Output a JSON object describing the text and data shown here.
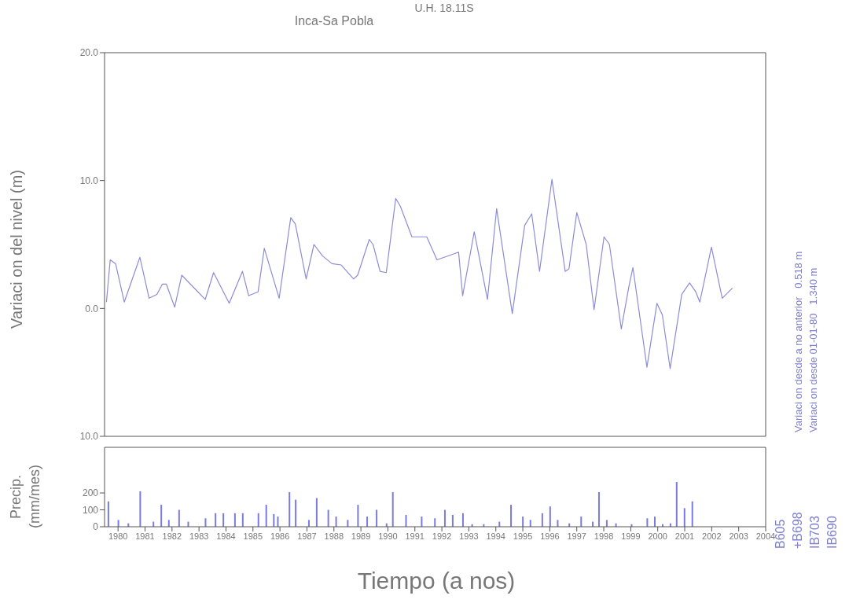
{
  "chart_data": [
    {
      "type": "line",
      "title": "U.H. 18.11S",
      "subtitle": "Inca-Sa Pobla",
      "ylabel": "Variaci on del nivel (m)",
      "xlim": [
        1979.5,
        2004
      ],
      "ylim": [
        -10,
        20
      ],
      "yticks": [
        {
          "value": -10,
          "label": "10.0"
        },
        {
          "value": 0,
          "label": "0.0"
        },
        {
          "value": 10,
          "label": "10.0"
        },
        {
          "value": 20,
          "label": "20.0"
        }
      ],
      "tick_labels": "y",
      "annotations": [
        "Variaci on desde a no anterior   0.518 m",
        "Variaci on desde 01-01-80   1.340 m"
      ],
      "series": [
        {
          "color": "#8c8cd8",
          "x": [
            1979.57,
            1979.71,
            1979.91,
            1980.23,
            1980.81,
            1981.15,
            1981.44,
            1981.64,
            1981.79,
            1982.1,
            1982.36,
            1983.23,
            1983.54,
            1984.12,
            1984.61,
            1984.84,
            1985.19,
            1985.42,
            1985.97,
            1986.4,
            1986.57,
            1986.97,
            1987.26,
            1987.58,
            1987.93,
            1988.27,
            1988.73,
            1988.88,
            1989.31,
            1989.45,
            1989.71,
            1989.94,
            1990.29,
            1990.46,
            1990.89,
            1991.1,
            1991.44,
            1991.82,
            1992.62,
            1992.77,
            1993.2,
            1993.69,
            1994.03,
            1994.61,
            1995.07,
            1995.33,
            1995.62,
            1996.08,
            1996.57,
            1996.71,
            1997.0,
            1997.35,
            1997.64,
            1998.01,
            1998.21,
            1998.65,
            1998.93,
            1999.08,
            1999.6,
            1999.97,
            2000.17,
            2000.46,
            2000.89,
            2001.18,
            2001.41,
            2001.56,
            2001.99,
            2002.39,
            2002.77
          ],
          "values": [
            0.5,
            3.8,
            3.5,
            0.5,
            4.0,
            0.8,
            1.1,
            1.9,
            1.9,
            0.1,
            2.6,
            0.7,
            2.8,
            0.4,
            2.9,
            1.0,
            1.3,
            4.7,
            0.8,
            7.1,
            6.6,
            2.3,
            5.0,
            4.1,
            3.5,
            3.4,
            2.3,
            2.6,
            5.4,
            5.0,
            2.9,
            2.8,
            8.6,
            8.0,
            5.6,
            5.6,
            5.6,
            3.8,
            4.4,
            1.0,
            6.0,
            0.7,
            7.8,
            -0.4,
            6.5,
            7.4,
            2.9,
            10.1,
            2.9,
            3.1,
            7.5,
            5.0,
            -0.1,
            5.6,
            5.0,
            -1.6,
            1.7,
            3.2,
            -4.6,
            0.4,
            -0.5,
            -4.7,
            1.1,
            2.0,
            1.3,
            0.5,
            4.8,
            0.8,
            1.6
          ]
        }
      ]
    },
    {
      "type": "bar",
      "ylabel": "Precip. (mm/mes)",
      "xlabel": "Tiempo (a nos)",
      "xlim": [
        1979.5,
        2004
      ],
      "xticks": [
        1980,
        1981,
        1982,
        1983,
        1984,
        1985,
        1986,
        1987,
        1988,
        1989,
        1990,
        1991,
        1992,
        1993,
        1994,
        1995,
        1996,
        1997,
        1998,
        1999,
        2000,
        2001,
        2002,
        2003,
        2004
      ],
      "ylim": [
        0,
        470
      ],
      "yticks": [
        0,
        100,
        200
      ],
      "annotations": [
        "B605",
        "+B698",
        "IB703",
        "IB690"
      ],
      "series": [
        {
          "color": "#7a7ae0",
          "x": [
            1979.63,
            1980.0,
            1980.37,
            1980.81,
            1981.3,
            1981.59,
            1981.87,
            1982.25,
            1982.59,
            1983.23,
            1983.6,
            1983.89,
            1984.32,
            1984.61,
            1985.19,
            1985.48,
            1985.76,
            1985.91,
            1986.34,
            1986.57,
            1987.06,
            1987.35,
            1987.78,
            1988.07,
            1988.5,
            1988.88,
            1989.22,
            1989.57,
            1989.94,
            1990.17,
            1990.66,
            1991.24,
            1991.73,
            1992.1,
            1992.39,
            1992.77,
            1993.11,
            1993.54,
            1994.12,
            1994.55,
            1994.99,
            1995.27,
            1995.71,
            1996.0,
            1996.28,
            1996.71,
            1997.15,
            1997.58,
            1997.81,
            1998.1,
            1998.44,
            1999.02,
            1999.6,
            1999.88,
            2000.17,
            2000.46,
            2000.69,
            2000.98,
            2001.27
          ],
          "values": [
            150,
            40,
            20,
            210,
            30,
            130,
            40,
            100,
            30,
            50,
            80,
            80,
            80,
            80,
            80,
            130,
            75,
            60,
            205,
            160,
            40,
            170,
            100,
            60,
            40,
            130,
            60,
            100,
            20,
            205,
            70,
            60,
            50,
            100,
            70,
            80,
            15,
            15,
            30,
            130,
            60,
            40,
            80,
            120,
            40,
            20,
            60,
            30,
            205,
            40,
            20,
            15,
            50,
            60,
            15,
            20,
            265,
            110,
            150
          ]
        }
      ]
    }
  ]
}
